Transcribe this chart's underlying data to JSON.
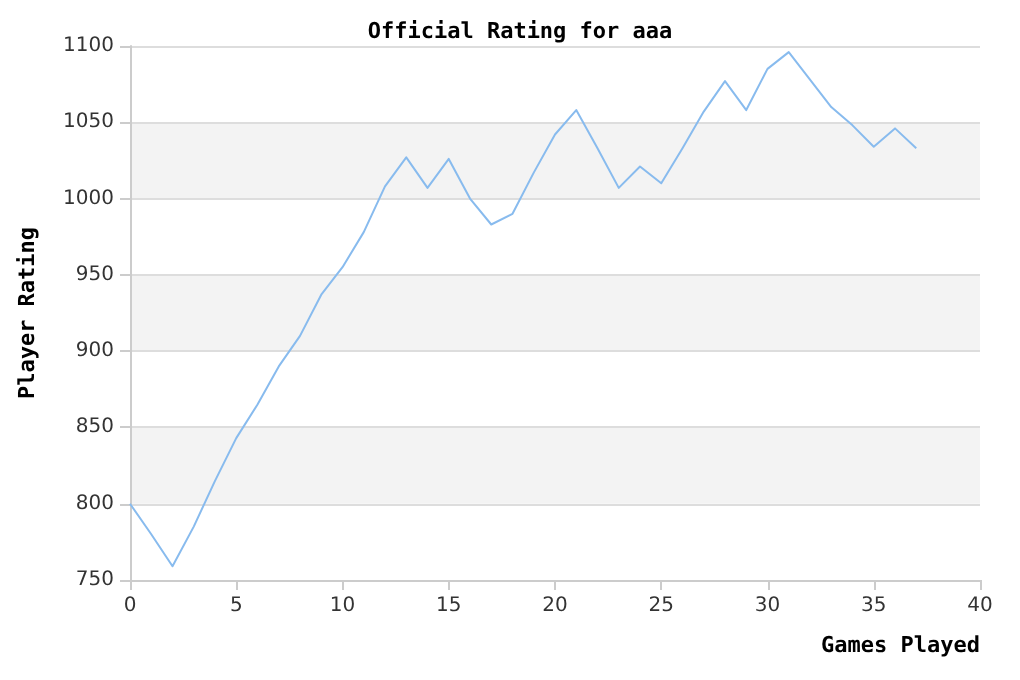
{
  "chart_data": {
    "type": "line",
    "title": "Official Rating for aaa",
    "xlabel": "Games Played",
    "ylabel": "Player Rating",
    "x": [
      0,
      1,
      2,
      3,
      4,
      5,
      6,
      7,
      8,
      9,
      10,
      11,
      12,
      13,
      14,
      15,
      16,
      17,
      18,
      19,
      20,
      21,
      22,
      23,
      24,
      25,
      26,
      27,
      28,
      29,
      30,
      31,
      32,
      33,
      34,
      35,
      36,
      37
    ],
    "series": [
      {
        "color": "#88bbee",
        "values": [
          800,
          780,
          759,
          785,
          815,
          843,
          865,
          890,
          910,
          937,
          955,
          978,
          1008,
          1027,
          1007,
          1026,
          1000,
          983,
          990,
          1017,
          1042,
          1058,
          1033,
          1007,
          1021,
          1010,
          1033,
          1057,
          1077,
          1058,
          1085,
          1096,
          1078,
          1060,
          1048,
          1034,
          1046,
          1033
        ]
      }
    ],
    "xlim": [
      0,
      40
    ],
    "xticks": [
      0,
      5,
      10,
      15,
      20,
      25,
      30,
      35,
      40
    ],
    "ylim": [
      750,
      1100
    ],
    "yticks": [
      750,
      800,
      850,
      900,
      950,
      1000,
      1050,
      1100
    ],
    "grid": "y",
    "marker": "none",
    "line_style": "solid"
  }
}
